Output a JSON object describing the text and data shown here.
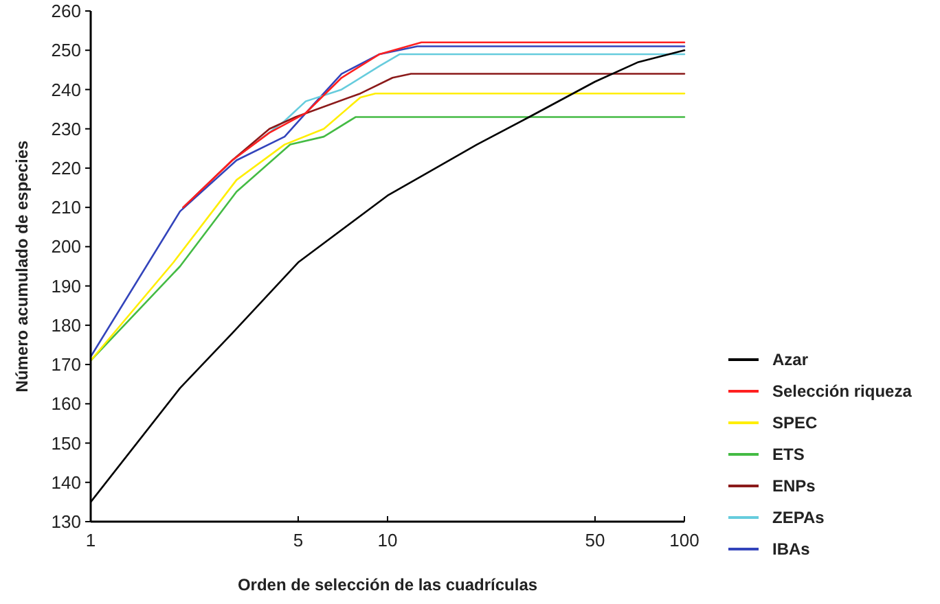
{
  "chart_data": {
    "type": "line",
    "xlabel": "Orden de selección de las cuadrículas",
    "ylabel": "Número acumulado de especies",
    "log": "x",
    "xlim": [
      1,
      100
    ],
    "xticks": [
      1,
      5,
      10,
      50,
      100
    ],
    "ylim": [
      130,
      260
    ],
    "yticks": [
      130,
      140,
      150,
      160,
      170,
      180,
      190,
      200,
      210,
      220,
      230,
      240,
      250,
      260
    ],
    "grid": false,
    "legend": "right",
    "marker": "none",
    "line_style": "solid",
    "series": [
      {
        "name": "Azar",
        "color": "#000000",
        "x": [
          1,
          2,
          3,
          5,
          10,
          20,
          30,
          50,
          70,
          100
        ],
        "values": [
          135,
          164,
          178,
          196,
          213,
          226,
          233,
          242,
          247,
          250
        ]
      },
      {
        "name": "Selección riqueza",
        "color": "#ff2020",
        "x": [
          2.05,
          3,
          4,
          5.3,
          7,
          9.4,
          13,
          100
        ],
        "values": [
          210,
          222,
          229,
          234,
          243,
          249,
          252,
          252
        ]
      },
      {
        "name": "SPEC",
        "color": "#ffee00",
        "x": [
          1,
          1.9,
          3.1,
          4.5,
          6.1,
          8.1,
          9.1,
          100
        ],
        "values": [
          171,
          196,
          217,
          226,
          230,
          238,
          239,
          239
        ]
      },
      {
        "name": "ETS",
        "color": "#44bb44",
        "x": [
          1,
          2,
          3.1,
          4.7,
          6.1,
          7.8,
          100
        ],
        "values": [
          171,
          195,
          214,
          226,
          228,
          233,
          233
        ]
      },
      {
        "name": "ENPs",
        "color": "#8b1a1a",
        "x": [
          2.05,
          3,
          4,
          4.9,
          8.1,
          10.4,
          12,
          100
        ],
        "values": [
          210,
          222,
          230,
          233,
          239,
          243,
          244,
          244
        ]
      },
      {
        "name": "ZEPAs",
        "color": "#66ccdd",
        "x": [
          3,
          4.5,
          5.3,
          7,
          9.4,
          11,
          100
        ],
        "values": [
          222,
          232,
          237,
          240,
          246,
          249,
          249
        ]
      },
      {
        "name": "IBAs",
        "color": "#3344bb",
        "x": [
          1,
          2,
          3.1,
          4.5,
          5.6,
          7,
          9.4,
          12.6,
          100
        ],
        "values": [
          172,
          209,
          222,
          228,
          236,
          244,
          249,
          251,
          251
        ]
      }
    ]
  }
}
